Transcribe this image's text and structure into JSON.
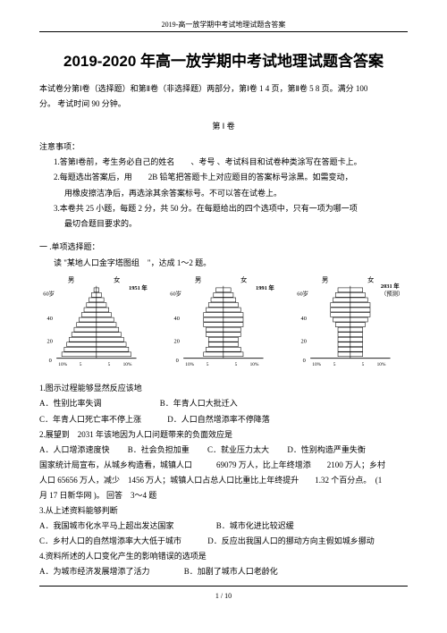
{
  "header": "2019-高一放学期中考试地理试题含答案",
  "title": "2019-2020 年高一放学期中考试地理试题含答案",
  "intro1": "本试卷分第Ⅰ卷（选择题）和第Ⅱ卷（非选择题）两部分，第Ⅰ卷 1 4 页，第Ⅱ卷 5 8 页。满分 100",
  "intro2": "分。 考试时间 90 分钟。",
  "part1": "第 Ⅰ 卷",
  "notice_h": "注意事项：",
  "n1": "1.答第Ⅰ卷前，考生务必自己的姓名　　、考号 、考试科目和试卷种类涂写在答题卡上。",
  "n2a": "2.每题选出答案后，用　　2B 铅笔把答题卡上对应题目的答案标号涂黑。如需变动，",
  "n2b": "用橡皮擦洁净后，再选涂其余答案标号。不可以答在试卷上。",
  "n3a": "3.本卷共 25 小题，每题 2 分，共 50 分。在每题给出的四个选项中，只有一项为哪一项",
  "n3b": "最切合题目要求的。",
  "sec1": "一 .单项选择题：",
  "stem1": "读 \"某地人口金字塔图组　\"，达成 1～2 题。",
  "fig": {
    "years": [
      "1951 年",
      "1991 年",
      "2031 年"
    ],
    "extra": [
      "",
      "",
      "（预测）"
    ],
    "ylabels": [
      "60岁",
      "40",
      "20",
      "0"
    ],
    "xticks": [
      "10%",
      "5",
      "5",
      "10%"
    ],
    "top": "男　　女",
    "pyramids": [
      {
        "type": "pyramid",
        "bars": [
          1,
          2,
          3,
          4,
          5,
          6,
          7,
          8,
          9,
          10,
          11,
          12,
          13,
          14
        ],
        "fill": "#fff",
        "stroke": "#000"
      },
      {
        "type": "pyramid",
        "bars": [
          3,
          4,
          5,
          6,
          7,
          8,
          8,
          8,
          7,
          7,
          6,
          6,
          7,
          8
        ],
        "fill": "#fff",
        "stroke": "#000"
      },
      {
        "type": "pyramid",
        "bars": [
          5,
          6,
          7,
          8,
          8,
          8,
          7,
          6,
          5,
          5,
          5,
          5,
          5,
          5
        ],
        "fill": "#fff",
        "stroke": "#000"
      }
    ]
  },
  "q1": "1.图示过程能够显然反应该地",
  "q1_opts": {
    "A": "A．性别比率失调",
    "B": "B．年青人口大批迁入",
    "C": "C．年青人口死亡率不停上涨",
    "D": "D．人口自然增添率不停降落"
  },
  "q2": "2.展望到　2031 年该地因为人口问题带来的负面效应是",
  "q2_opts": {
    "A": "A．人口增添速度快",
    "B": "B．社会负担加重",
    "C": "C．就业压力太大",
    "D": "D．性别构造严重失衡"
  },
  "passage_a": "国家统计局宣布，从城乡构造看，城镇人口　　　69079 万人，比上年终增添　　2100 万人；乡村",
  "passage_b": "人口 65656 万人，减少　1456 万人；城镇人口占总人口比重比上年终提升　　1.32 个百分点。　(1",
  "passage_c": "月 17 日新华网 )。 回答　3～4 题",
  "q3": "3.从上述资料能够判断",
  "q3_opts": {
    "A": "A．我国城市化水平马上超出发达国家",
    "B": "B．城市化进比较迟缓",
    "C": "C．乡村人口的自然增添率大大低于城市",
    "D": "D．反应出我国人口的挪动方向主假如城乡挪动"
  },
  "q4": "4.资料所述的人口变化产生的影响错误的选项是",
  "q4_opts": {
    "A": "A．为城市经济发展增添了活力",
    "B": "B．加剧了城市人口老龄化"
  },
  "footer": "1 / 10"
}
